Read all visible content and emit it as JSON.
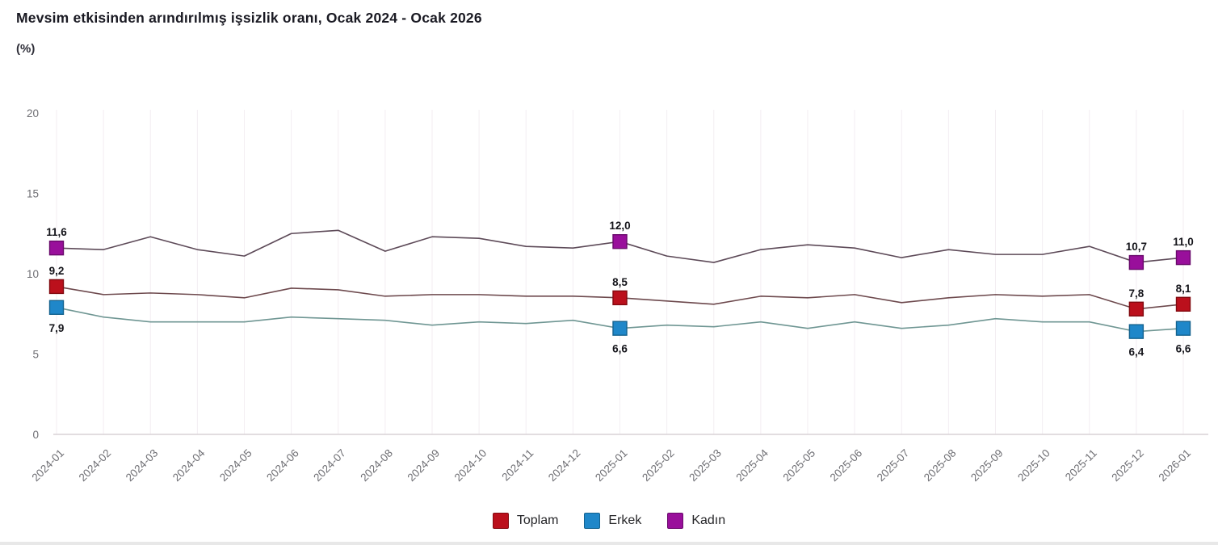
{
  "chart_data": {
    "type": "line",
    "title": "Mevsim etkisinden arındırılmış işsizlik oranı, Ocak 2024 - Ocak 2026",
    "unit_label": "(%)",
    "xlabel": "",
    "ylabel": "(%)",
    "ylim": [
      0,
      20
    ],
    "yticks": [
      0,
      5,
      10,
      15,
      20
    ],
    "grid": "vertical-only",
    "legend_position": "bottom",
    "decimal_separator": ",",
    "x": [
      "2024-01",
      "2024-02",
      "2024-03",
      "2024-04",
      "2024-05",
      "2024-06",
      "2024-07",
      "2024-08",
      "2024-09",
      "2024-10",
      "2024-11",
      "2024-12",
      "2025-01",
      "2025-02",
      "2025-03",
      "2025-04",
      "2025-05",
      "2025-06",
      "2025-07",
      "2025-08",
      "2025-09",
      "2025-10",
      "2025-11",
      "2025-12",
      "2026-01"
    ],
    "labeled_indices": [
      0,
      12,
      23,
      24
    ],
    "series": [
      {
        "name": "Toplam",
        "values": [
          9.2,
          8.7,
          8.8,
          8.7,
          8.5,
          9.1,
          9.0,
          8.6,
          8.7,
          8.7,
          8.6,
          8.6,
          8.5,
          8.3,
          8.1,
          8.6,
          8.5,
          8.7,
          8.2,
          8.5,
          8.7,
          8.6,
          8.7,
          7.8,
          8.1
        ],
        "point_labels": [
          "9,2",
          "8,5",
          "7,8",
          "8,1"
        ],
        "label_side": "above",
        "marker_color": "#bb101c",
        "marker_border": "#82090f",
        "line_color": "#6d494d"
      },
      {
        "name": "Erkek",
        "values": [
          7.9,
          7.3,
          7.0,
          7.0,
          7.0,
          7.3,
          7.2,
          7.1,
          6.8,
          7.0,
          6.9,
          7.1,
          6.6,
          6.8,
          6.7,
          7.0,
          6.6,
          7.0,
          6.6,
          6.8,
          7.2,
          7.0,
          7.0,
          6.4,
          6.6
        ],
        "point_labels": [
          "7,9",
          "6,6",
          "6,4",
          "6,6"
        ],
        "label_side": "below",
        "marker_color": "#1f87c9",
        "marker_border": "#14628f",
        "line_color": "#6f9693"
      },
      {
        "name": "Kadın",
        "values": [
          11.6,
          11.5,
          12.3,
          11.5,
          11.1,
          12.5,
          12.7,
          11.4,
          12.3,
          12.2,
          11.7,
          11.6,
          12.0,
          11.1,
          10.7,
          11.5,
          11.8,
          11.6,
          11.0,
          11.5,
          11.2,
          11.2,
          11.7,
          10.7,
          11.0
        ],
        "point_labels": [
          "11,6",
          "12,0",
          "10,7",
          "11,0"
        ],
        "label_side": "above",
        "marker_color": "#990f9b",
        "marker_border": "#69096b",
        "line_color": "#5d4a58"
      }
    ]
  },
  "legend": {
    "items": [
      {
        "label": "Toplam",
        "color": "#bb101c",
        "border": "#82090f"
      },
      {
        "label": "Erkek",
        "color": "#1f87c9",
        "border": "#14628f"
      },
      {
        "label": "Kadın",
        "color": "#990f9b",
        "border": "#69096b"
      }
    ]
  },
  "colors": {
    "background": "#ffffff",
    "grid_line": "#f3eef2",
    "axis_line": "#d8d2d5",
    "tick_text": "#6e6e73",
    "data_label_text": "#14141a",
    "title_text": "#191922",
    "bottom_bar": "#e8e8e8"
  }
}
